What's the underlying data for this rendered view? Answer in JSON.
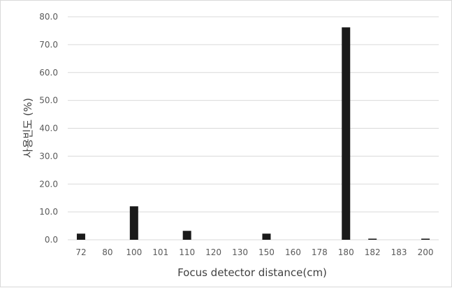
{
  "chart_data": {
    "type": "bar",
    "title": "",
    "xlabel": "Focus detector distance(cm)",
    "ylabel": "사용빈도 (%)",
    "categories": [
      "72",
      "80",
      "100",
      "101",
      "110",
      "120",
      "130",
      "150",
      "160",
      "178",
      "180",
      "182",
      "183",
      "200"
    ],
    "values": [
      2.2,
      0,
      12.0,
      0,
      3.2,
      0,
      0,
      2.2,
      0,
      0,
      76.2,
      0.4,
      0,
      0.4
    ],
    "ylim": [
      0,
      80
    ],
    "yticks": [
      "0.0",
      "10.0",
      "20.0",
      "30.0",
      "40.0",
      "50.0",
      "60.0",
      "70.0",
      "80.0"
    ],
    "grid": true,
    "legend": "none",
    "bar_color": "#1a1a1a",
    "grid_color": "#d9d9d9"
  }
}
